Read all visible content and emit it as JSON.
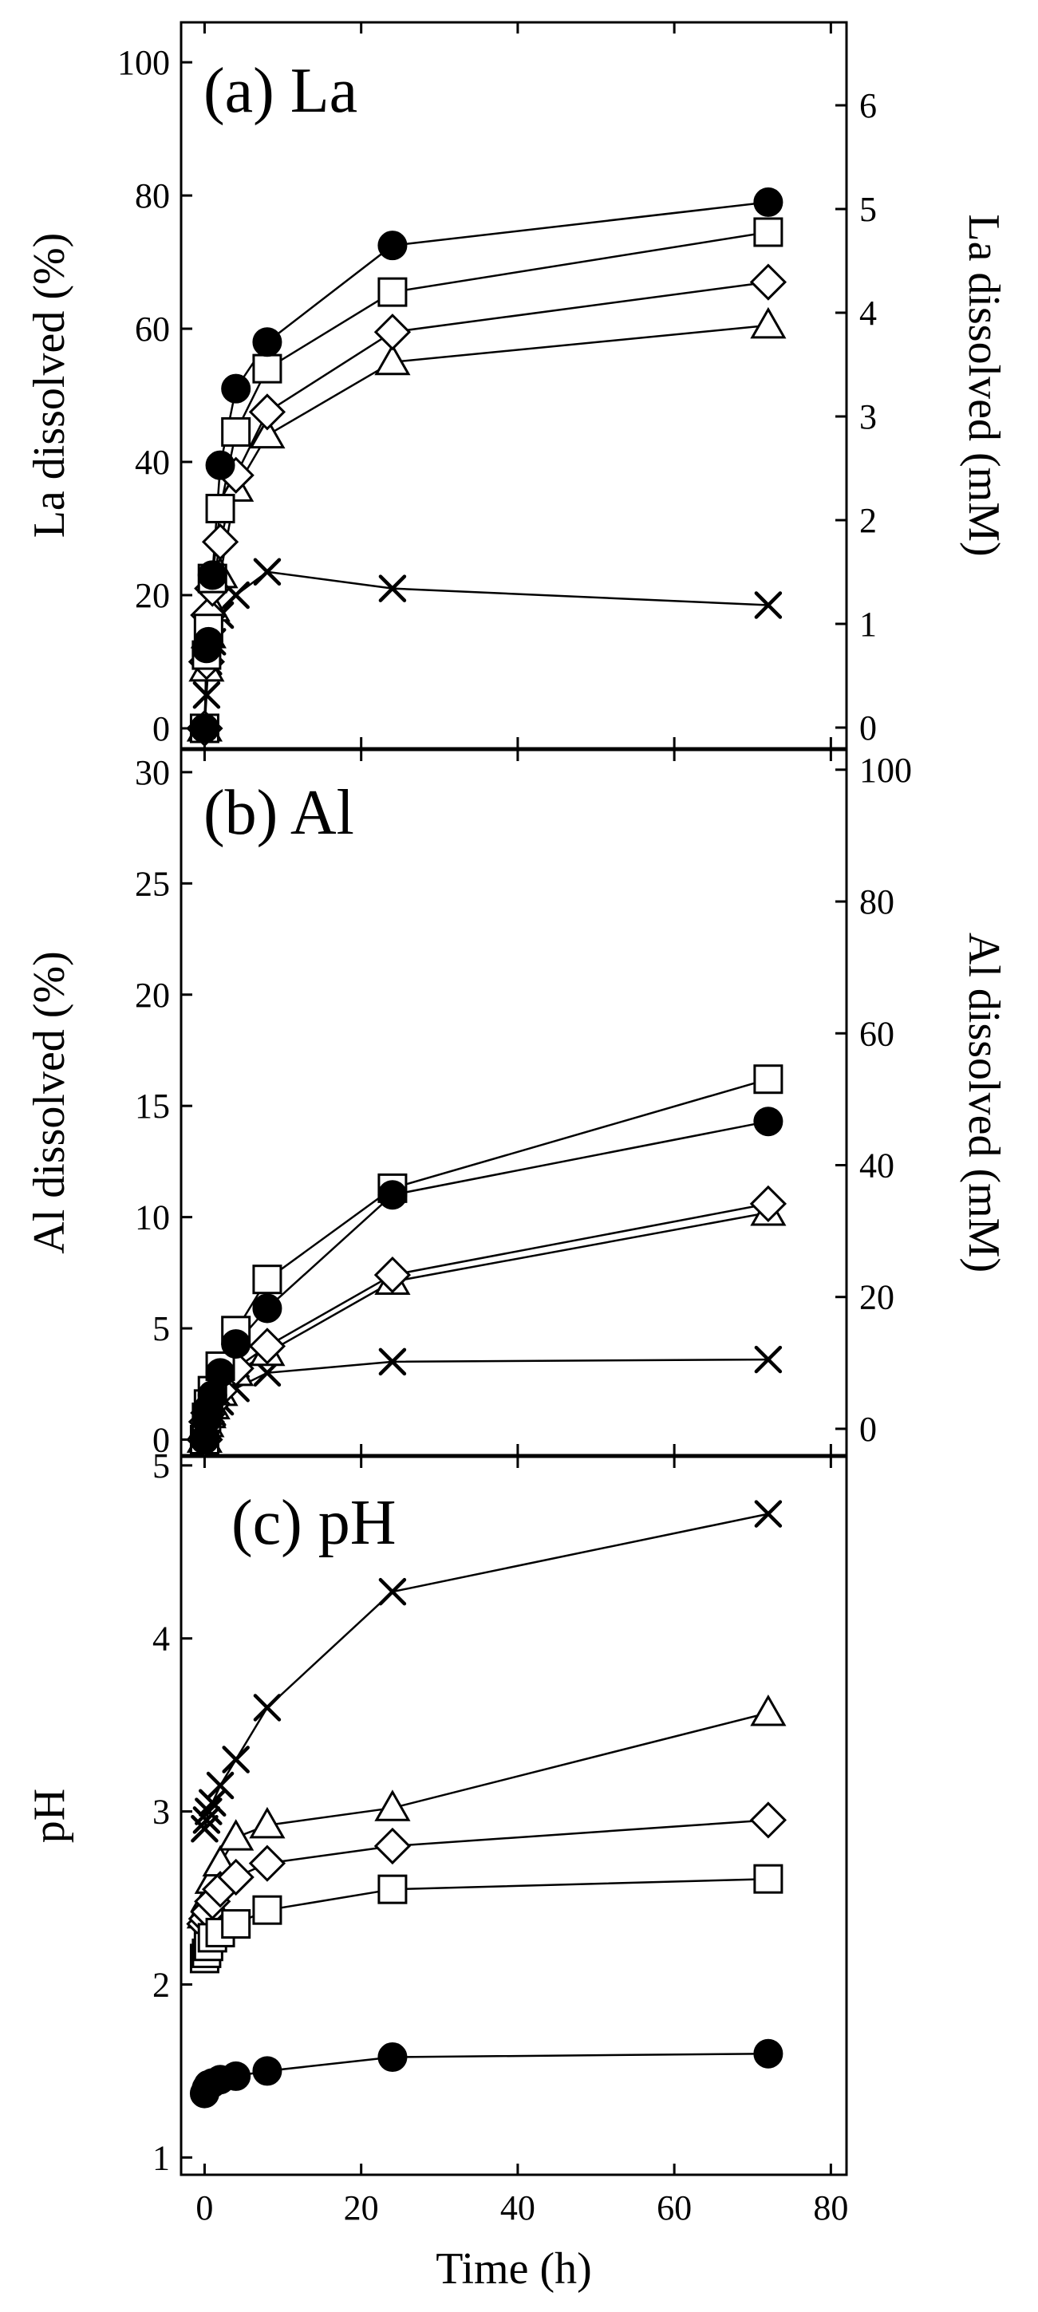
{
  "chart_data": [
    {
      "type": "line",
      "title": "(a) La",
      "xlabel": "",
      "ylabel": "La dissolved (%)",
      "ylabel_right": "La dissolved (mM)",
      "xlim": [
        -3,
        82
      ],
      "ylim": [
        -3,
        106
      ],
      "ylim_right": [
        -0.2,
        6.8
      ],
      "xticks": [
        0,
        20,
        40,
        60,
        80
      ],
      "yticks": [
        0,
        20,
        40,
        60,
        80,
        100
      ],
      "yticks_right": [
        0,
        1,
        2,
        3,
        4,
        5,
        6
      ],
      "series": [
        {
          "name": "series-x",
          "marker": "x",
          "x": [
            0,
            0.25,
            0.5,
            1,
            2,
            4,
            8,
            24,
            72
          ],
          "y": [
            0,
            5,
            10,
            13,
            17,
            20,
            23.5,
            21,
            18.5
          ]
        },
        {
          "name": "series-triangle",
          "marker": "triangle",
          "x": [
            0,
            0.25,
            0.5,
            1,
            2,
            4,
            8,
            24,
            72
          ],
          "y": [
            0,
            9,
            14,
            18,
            23,
            36,
            44,
            55,
            60.5
          ]
        },
        {
          "name": "series-diamond",
          "marker": "diamond",
          "x": [
            0,
            0.25,
            0.5,
            1,
            2,
            4,
            8,
            24,
            72
          ],
          "y": [
            0,
            10,
            17,
            21,
            28,
            38,
            47.5,
            59.5,
            67
          ]
        },
        {
          "name": "series-square",
          "marker": "square",
          "x": [
            0,
            0.25,
            0.5,
            1,
            2,
            4,
            8,
            24,
            72
          ],
          "y": [
            0,
            11,
            15,
            22.5,
            33,
            44.5,
            54,
            65.5,
            74.5
          ]
        },
        {
          "name": "series-circle",
          "marker": "circle",
          "x": [
            0,
            0.25,
            0.5,
            1,
            2,
            4,
            8,
            24,
            72
          ],
          "y": [
            0,
            12,
            13,
            23,
            39.5,
            51,
            58,
            72.5,
            79
          ]
        }
      ]
    },
    {
      "type": "line",
      "title": "(b) Al",
      "xlabel": "",
      "ylabel": "Al dissolved (%)",
      "ylabel_right": "Al dissolved (mM)",
      "xlim": [
        -3,
        82
      ],
      "ylim": [
        -0.7,
        31
      ],
      "ylim_right": [
        -4,
        103
      ],
      "xticks": [
        0,
        20,
        40,
        60,
        80
      ],
      "yticks": [
        0,
        5,
        10,
        15,
        20,
        25,
        30
      ],
      "yticks_right": [
        0,
        20,
        40,
        60,
        80,
        100
      ],
      "series": [
        {
          "name": "series-x",
          "marker": "x",
          "x": [
            0,
            0.25,
            0.5,
            1,
            2,
            4,
            8,
            24,
            72
          ],
          "y": [
            0,
            0.5,
            0.8,
            1.2,
            1.7,
            2.3,
            3.0,
            3.5,
            3.6
          ]
        },
        {
          "name": "series-triangle",
          "marker": "triangle",
          "x": [
            0,
            0.25,
            0.5,
            1,
            2,
            4,
            8,
            24,
            72
          ],
          "y": [
            0,
            0.7,
            1.1,
            1.5,
            2.1,
            3.0,
            3.9,
            7.1,
            10.2
          ]
        },
        {
          "name": "series-diamond",
          "marker": "diamond",
          "x": [
            0,
            0.25,
            0.5,
            1,
            2,
            4,
            8,
            24,
            72
          ],
          "y": [
            0,
            0.8,
            1.2,
            1.6,
            2.2,
            3.2,
            4.2,
            7.4,
            10.6
          ]
        },
        {
          "name": "series-square",
          "marker": "square",
          "x": [
            0,
            0.25,
            0.5,
            1,
            2,
            4,
            8,
            24,
            72
          ],
          "y": [
            0,
            1.0,
            1.6,
            2.2,
            3.3,
            4.9,
            7.2,
            11.3,
            16.2
          ]
        },
        {
          "name": "series-circle",
          "marker": "circle",
          "x": [
            0,
            0.25,
            0.5,
            1,
            2,
            4,
            8,
            24,
            72
          ],
          "y": [
            0,
            0.9,
            1.4,
            2.0,
            3.0,
            4.3,
            5.9,
            11.0,
            14.3
          ]
        }
      ]
    },
    {
      "type": "line",
      "title": "(c) pH",
      "xlabel": "Time (h)",
      "ylabel": "pH",
      "xlim": [
        -3,
        82
      ],
      "ylim": [
        0.9,
        5.05
      ],
      "xticks": [
        0,
        20,
        40,
        60,
        80
      ],
      "yticks": [
        1,
        2,
        3,
        4,
        5
      ],
      "series": [
        {
          "name": "series-x",
          "marker": "x",
          "x": [
            0,
            0.25,
            0.5,
            1,
            2,
            4,
            8,
            24,
            72
          ],
          "y": [
            2.9,
            2.95,
            3.0,
            3.05,
            3.15,
            3.3,
            3.6,
            4.27,
            4.72
          ]
        },
        {
          "name": "series-triangle",
          "marker": "triangle",
          "x": [
            0,
            0.25,
            0.5,
            1,
            2,
            4,
            8,
            24,
            72
          ],
          "y": [
            2.4,
            2.45,
            2.5,
            2.6,
            2.7,
            2.85,
            2.92,
            3.02,
            3.57
          ]
        },
        {
          "name": "series-diamond",
          "marker": "diamond",
          "x": [
            0,
            0.25,
            0.5,
            1,
            2,
            4,
            8,
            24,
            72
          ],
          "y": [
            2.35,
            2.38,
            2.42,
            2.48,
            2.55,
            2.62,
            2.7,
            2.8,
            2.95
          ]
        },
        {
          "name": "series-square",
          "marker": "square",
          "x": [
            0,
            0.25,
            0.5,
            1,
            2,
            4,
            8,
            24,
            72
          ],
          "y": [
            2.15,
            2.18,
            2.22,
            2.27,
            2.3,
            2.35,
            2.43,
            2.55,
            2.61
          ]
        },
        {
          "name": "series-circle",
          "marker": "circle",
          "x": [
            0,
            0.25,
            0.5,
            1,
            2,
            4,
            8,
            24,
            72
          ],
          "y": [
            1.37,
            1.4,
            1.42,
            1.43,
            1.45,
            1.47,
            1.5,
            1.58,
            1.6
          ]
        }
      ]
    }
  ]
}
